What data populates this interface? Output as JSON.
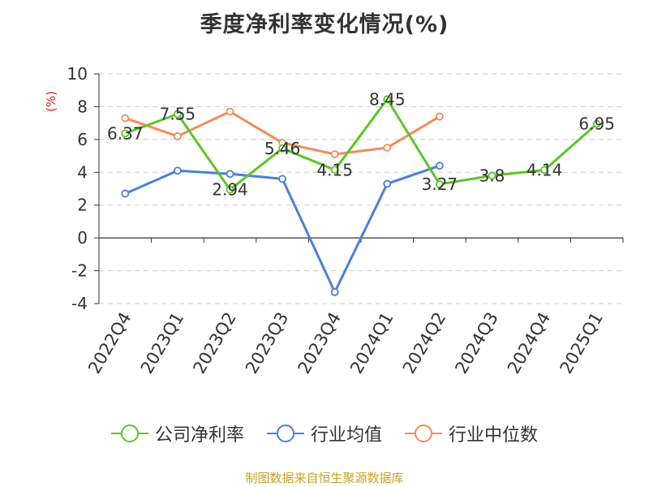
{
  "title": "季度净利率变化情况(%)",
  "source": "制图数据来自恒生聚源数据库",
  "chart_data": {
    "type": "line",
    "title": "季度净利率变化情况(%)",
    "ylabel": "(%)",
    "ylabel_color": "#e02020",
    "xlabel": "",
    "ylim": [
      -4,
      10
    ],
    "yticks": [
      -4,
      -2,
      0,
      2,
      4,
      6,
      8,
      10
    ],
    "grid": true,
    "legend_position": "bottom",
    "categories": [
      "2022Q4",
      "2023Q1",
      "2023Q2",
      "2023Q3",
      "2023Q4",
      "2024Q1",
      "2024Q2",
      "2024Q3",
      "2024Q4",
      "2025Q1"
    ],
    "series": [
      {
        "name": "公司净利率",
        "color": "#5cc628",
        "values": [
          6.37,
          7.55,
          2.94,
          5.46,
          4.15,
          8.45,
          3.27,
          3.8,
          4.14,
          6.95
        ],
        "labels": [
          "6.37",
          "7.55",
          "2.94",
          "5.46",
          "4.15",
          "8.45",
          "3.27",
          "3.8",
          "4.14",
          "6.95"
        ]
      },
      {
        "name": "行业均值",
        "color": "#4a7fdc",
        "values": [
          2.7,
          4.1,
          3.9,
          3.6,
          -3.3,
          3.3,
          4.4,
          null,
          null,
          null
        ]
      },
      {
        "name": "行业中位数",
        "color": "#f58b58",
        "values": [
          7.3,
          6.2,
          7.7,
          5.8,
          5.1,
          5.5,
          7.4,
          null,
          null,
          null
        ]
      }
    ]
  }
}
